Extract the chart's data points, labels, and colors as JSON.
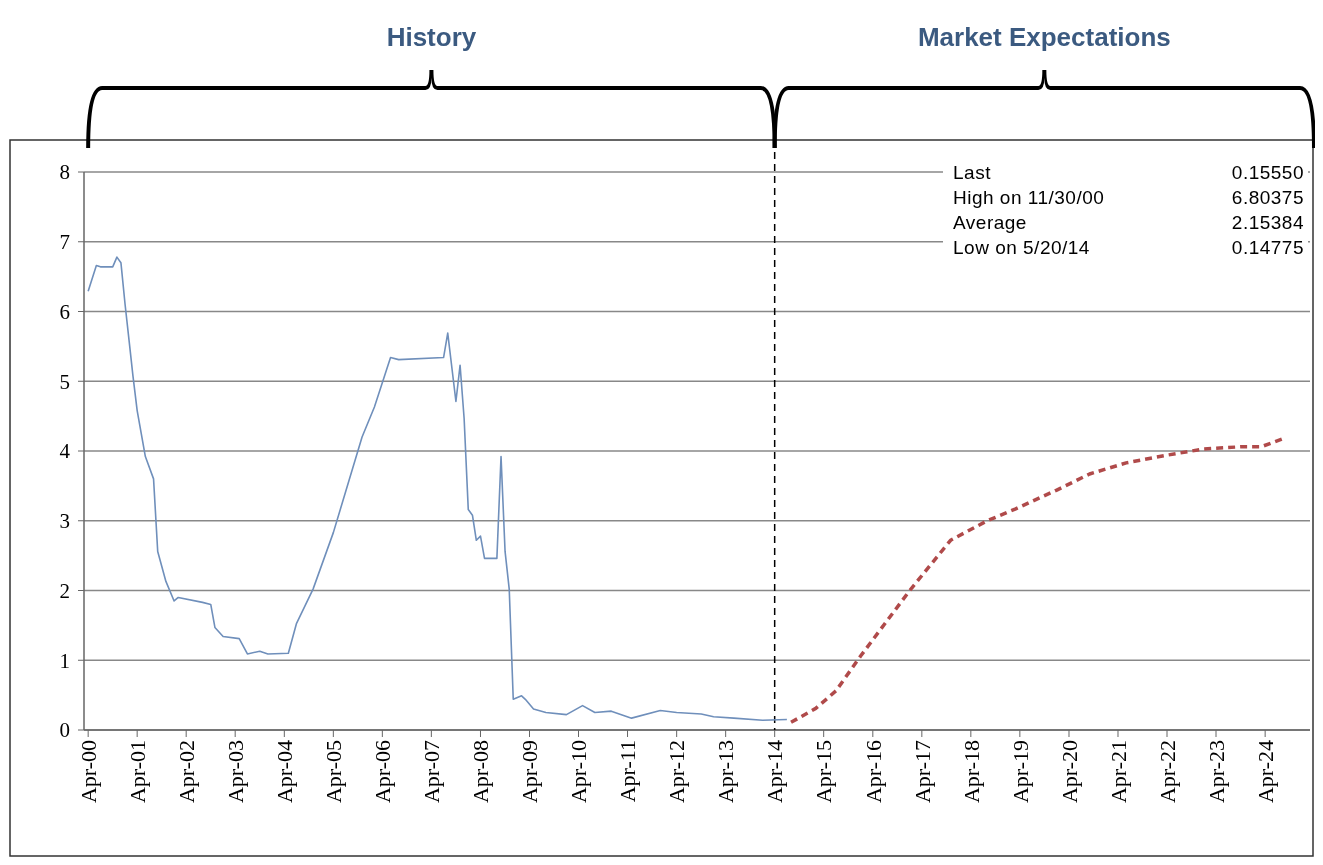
{
  "chart_data": {
    "type": "line",
    "annotations": [
      "History",
      "Market Expectations",
      "Last",
      "0.15550",
      "High on 11/30/00",
      "6.80375",
      "Average",
      "2.15384",
      "Low on 5/20/14",
      "0.14775"
    ],
    "series": [
      {
        "color": "#6f8fbb",
        "line_style": "solid",
        "x": [
          "2000-04",
          "2000-06",
          "2000-07",
          "2000-10",
          "2000-11",
          "2000-12",
          "2001-01",
          "2001-02",
          "2001-03",
          "2001-04",
          "2001-06",
          "2001-08",
          "2001-09",
          "2001-11",
          "2002-01",
          "2002-02",
          "2002-08",
          "2002-10",
          "2002-11",
          "2003-01",
          "2003-05",
          "2003-07",
          "2003-10",
          "2003-12",
          "2004-05",
          "2004-07",
          "2004-11",
          "2005-04",
          "2005-11",
          "2006-02",
          "2006-06",
          "2006-08",
          "2007-07",
          "2007-08",
          "2007-10",
          "2007-11",
          "2007-12",
          "2008-01",
          "2008-02",
          "2008-03",
          "2008-04",
          "2008-05",
          "2008-08",
          "2008-09",
          "2008-10",
          "2008-11",
          "2008-12",
          "2009-02",
          "2009-03",
          "2009-05",
          "2009-08",
          "2010-01",
          "2010-05",
          "2010-08",
          "2010-12",
          "2011-05",
          "2011-12",
          "2012-04",
          "2012-10",
          "2013-01",
          "2013-06",
          "2014-01",
          "2014-07"
        ],
        "values": [
          6.29,
          6.66,
          6.64,
          6.64,
          6.78,
          6.7,
          6.1,
          5.56,
          5.07,
          4.58,
          3.92,
          3.6,
          2.56,
          2.13,
          1.85,
          1.9,
          1.83,
          1.8,
          1.47,
          1.34,
          1.31,
          1.09,
          1.13,
          1.09,
          1.1,
          1.53,
          2.02,
          2.83,
          4.2,
          4.63,
          5.34,
          5.31,
          5.34,
          5.69,
          4.71,
          5.23,
          4.47,
          3.16,
          3.08,
          2.72,
          2.78,
          2.46,
          2.46,
          3.92,
          2.56,
          2.02,
          0.44,
          0.49,
          0.44,
          0.3,
          0.25,
          0.22,
          0.35,
          0.25,
          0.27,
          0.17,
          0.28,
          0.25,
          0.23,
          0.19,
          0.17,
          0.14,
          0.15
        ]
      },
      {
        "color": "#b04a4a",
        "line_style": "dashed",
        "x": [
          "2014-08",
          "2015-02",
          "2015-07",
          "2016-01",
          "2017-01",
          "2017-11",
          "2018-08",
          "2019-03",
          "2020-01",
          "2020-09",
          "2021-06",
          "2022-04",
          "2023-01",
          "2023-10",
          "2024-03",
          "2024-09"
        ],
        "values": [
          0.11,
          0.31,
          0.56,
          1.06,
          2.0,
          2.72,
          3.0,
          3.17,
          3.44,
          3.67,
          3.83,
          3.94,
          4.03,
          4.06,
          4.06,
          4.19
        ]
      }
    ],
    "xlim": [
      "2000-03",
      "2025-03"
    ],
    "xticks": [
      {
        "value": "2000-04",
        "label": "Apr-00"
      },
      {
        "value": "2001-04",
        "label": "Apr-01"
      },
      {
        "value": "2002-04",
        "label": "Apr-02"
      },
      {
        "value": "2003-04",
        "label": "Apr-03"
      },
      {
        "value": "2004-04",
        "label": "Apr-04"
      },
      {
        "value": "2005-04",
        "label": "Apr-05"
      },
      {
        "value": "2006-04",
        "label": "Apr-06"
      },
      {
        "value": "2007-04",
        "label": "Apr-07"
      },
      {
        "value": "2008-04",
        "label": "Apr-08"
      },
      {
        "value": "2009-04",
        "label": "Apr-09"
      },
      {
        "value": "2010-04",
        "label": "Apr-10"
      },
      {
        "value": "2011-04",
        "label": "Apr-11"
      },
      {
        "value": "2012-04",
        "label": "Apr-12"
      },
      {
        "value": "2013-04",
        "label": "Apr-13"
      },
      {
        "value": "2014-04",
        "label": "Apr-14"
      },
      {
        "value": "2015-04",
        "label": "Apr-15"
      },
      {
        "value": "2016-04",
        "label": "Apr-16"
      },
      {
        "value": "2017-04",
        "label": "Apr-17"
      },
      {
        "value": "2018-04",
        "label": "Apr-18"
      },
      {
        "value": "2019-04",
        "label": "Apr-19"
      },
      {
        "value": "2020-04",
        "label": "Apr-20"
      },
      {
        "value": "2021-04",
        "label": "Apr-21"
      },
      {
        "value": "2022-04",
        "label": "Apr-22"
      },
      {
        "value": "2023-04",
        "label": "Apr-23"
      },
      {
        "value": "2024-04",
        "label": "Apr-24"
      }
    ],
    "ylim": [
      0,
      8
    ],
    "yticks": [
      0,
      1,
      2,
      3,
      4,
      5,
      6,
      7,
      8
    ],
    "ref_lines": [
      {
        "axis": "x",
        "value": "2014-04",
        "color": "#000000",
        "line_style": "dashed"
      }
    ],
    "grid": "y"
  }
}
